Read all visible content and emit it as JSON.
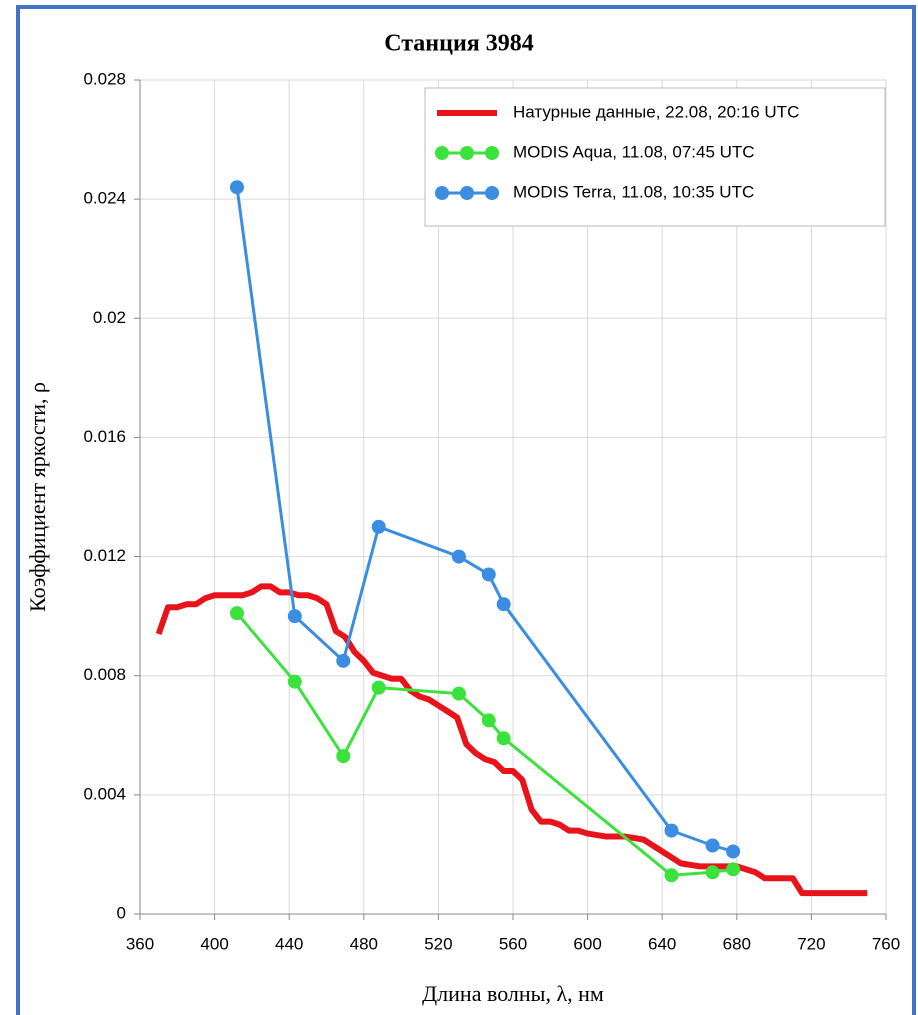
{
  "chart_data": {
    "type": "line",
    "title": "Станция 3984",
    "x_label": "Длина волны, λ, нм",
    "y_label": "Коэффициент яркости, ρ",
    "xlim": [
      360,
      760
    ],
    "xticks": [
      360,
      400,
      440,
      480,
      520,
      560,
      600,
      640,
      680,
      720,
      760
    ],
    "ylim": [
      0,
      0.028
    ],
    "yticks": [
      0,
      0.004,
      0.008,
      0.012,
      0.016,
      0.02,
      0.024,
      0.028
    ],
    "grid": true,
    "legend": "upper right",
    "series": [
      {
        "name": "Натурные данные, 22.08, 20:16 UTC",
        "color": "#e8141b",
        "markers": false,
        "x": [
          370,
          375,
          380,
          385,
          390,
          395,
          400,
          410,
          415,
          420,
          425,
          430,
          435,
          440,
          445,
          450,
          455,
          460,
          465,
          470,
          475,
          480,
          485,
          490,
          495,
          500,
          505,
          510,
          515,
          520,
          525,
          530,
          535,
          540,
          545,
          550,
          555,
          560,
          565,
          570,
          575,
          580,
          585,
          590,
          595,
          600,
          610,
          620,
          630,
          640,
          645,
          650,
          660,
          670,
          680,
          690,
          695,
          700,
          710,
          715,
          720,
          750
        ],
        "values": [
          0.0094,
          0.0103,
          0.0103,
          0.0104,
          0.0104,
          0.0106,
          0.0107,
          0.0107,
          0.0107,
          0.0108,
          0.011,
          0.011,
          0.0108,
          0.0108,
          0.0107,
          0.0107,
          0.0106,
          0.0104,
          0.0095,
          0.0093,
          0.0088,
          0.0085,
          0.0081,
          0.008,
          0.0079,
          0.0079,
          0.0075,
          0.0073,
          0.0072,
          0.007,
          0.0068,
          0.0066,
          0.0057,
          0.0054,
          0.0052,
          0.0051,
          0.0048,
          0.0048,
          0.0045,
          0.0035,
          0.0031,
          0.0031,
          0.003,
          0.0028,
          0.0028,
          0.0027,
          0.0026,
          0.0026,
          0.0025,
          0.0021,
          0.0019,
          0.0017,
          0.0016,
          0.0016,
          0.0016,
          0.0014,
          0.0012,
          0.0012,
          0.0012,
          0.0007,
          0.0007,
          0.0007
        ]
      },
      {
        "name": "MODIS Aqua, 11.08, 07:45 UTC",
        "color": "#3ce23c",
        "markers": true,
        "x": [
          412,
          443,
          469,
          488,
          531,
          547,
          555,
          645,
          667,
          678
        ],
        "values": [
          0.0101,
          0.0078,
          0.0053,
          0.0076,
          0.0074,
          0.0065,
          0.0059,
          0.0013,
          0.0014,
          0.0015
        ]
      },
      {
        "name": "MODIS Terra, 11.08, 10:35 UTC",
        "color": "#3a8de0",
        "markers": true,
        "x": [
          412,
          443,
          469,
          488,
          531,
          547,
          555,
          645,
          667,
          678
        ],
        "values": [
          0.0244,
          0.01,
          0.0085,
          0.013,
          0.012,
          0.0114,
          0.0104,
          0.0028,
          0.0023,
          0.0021
        ]
      }
    ]
  }
}
